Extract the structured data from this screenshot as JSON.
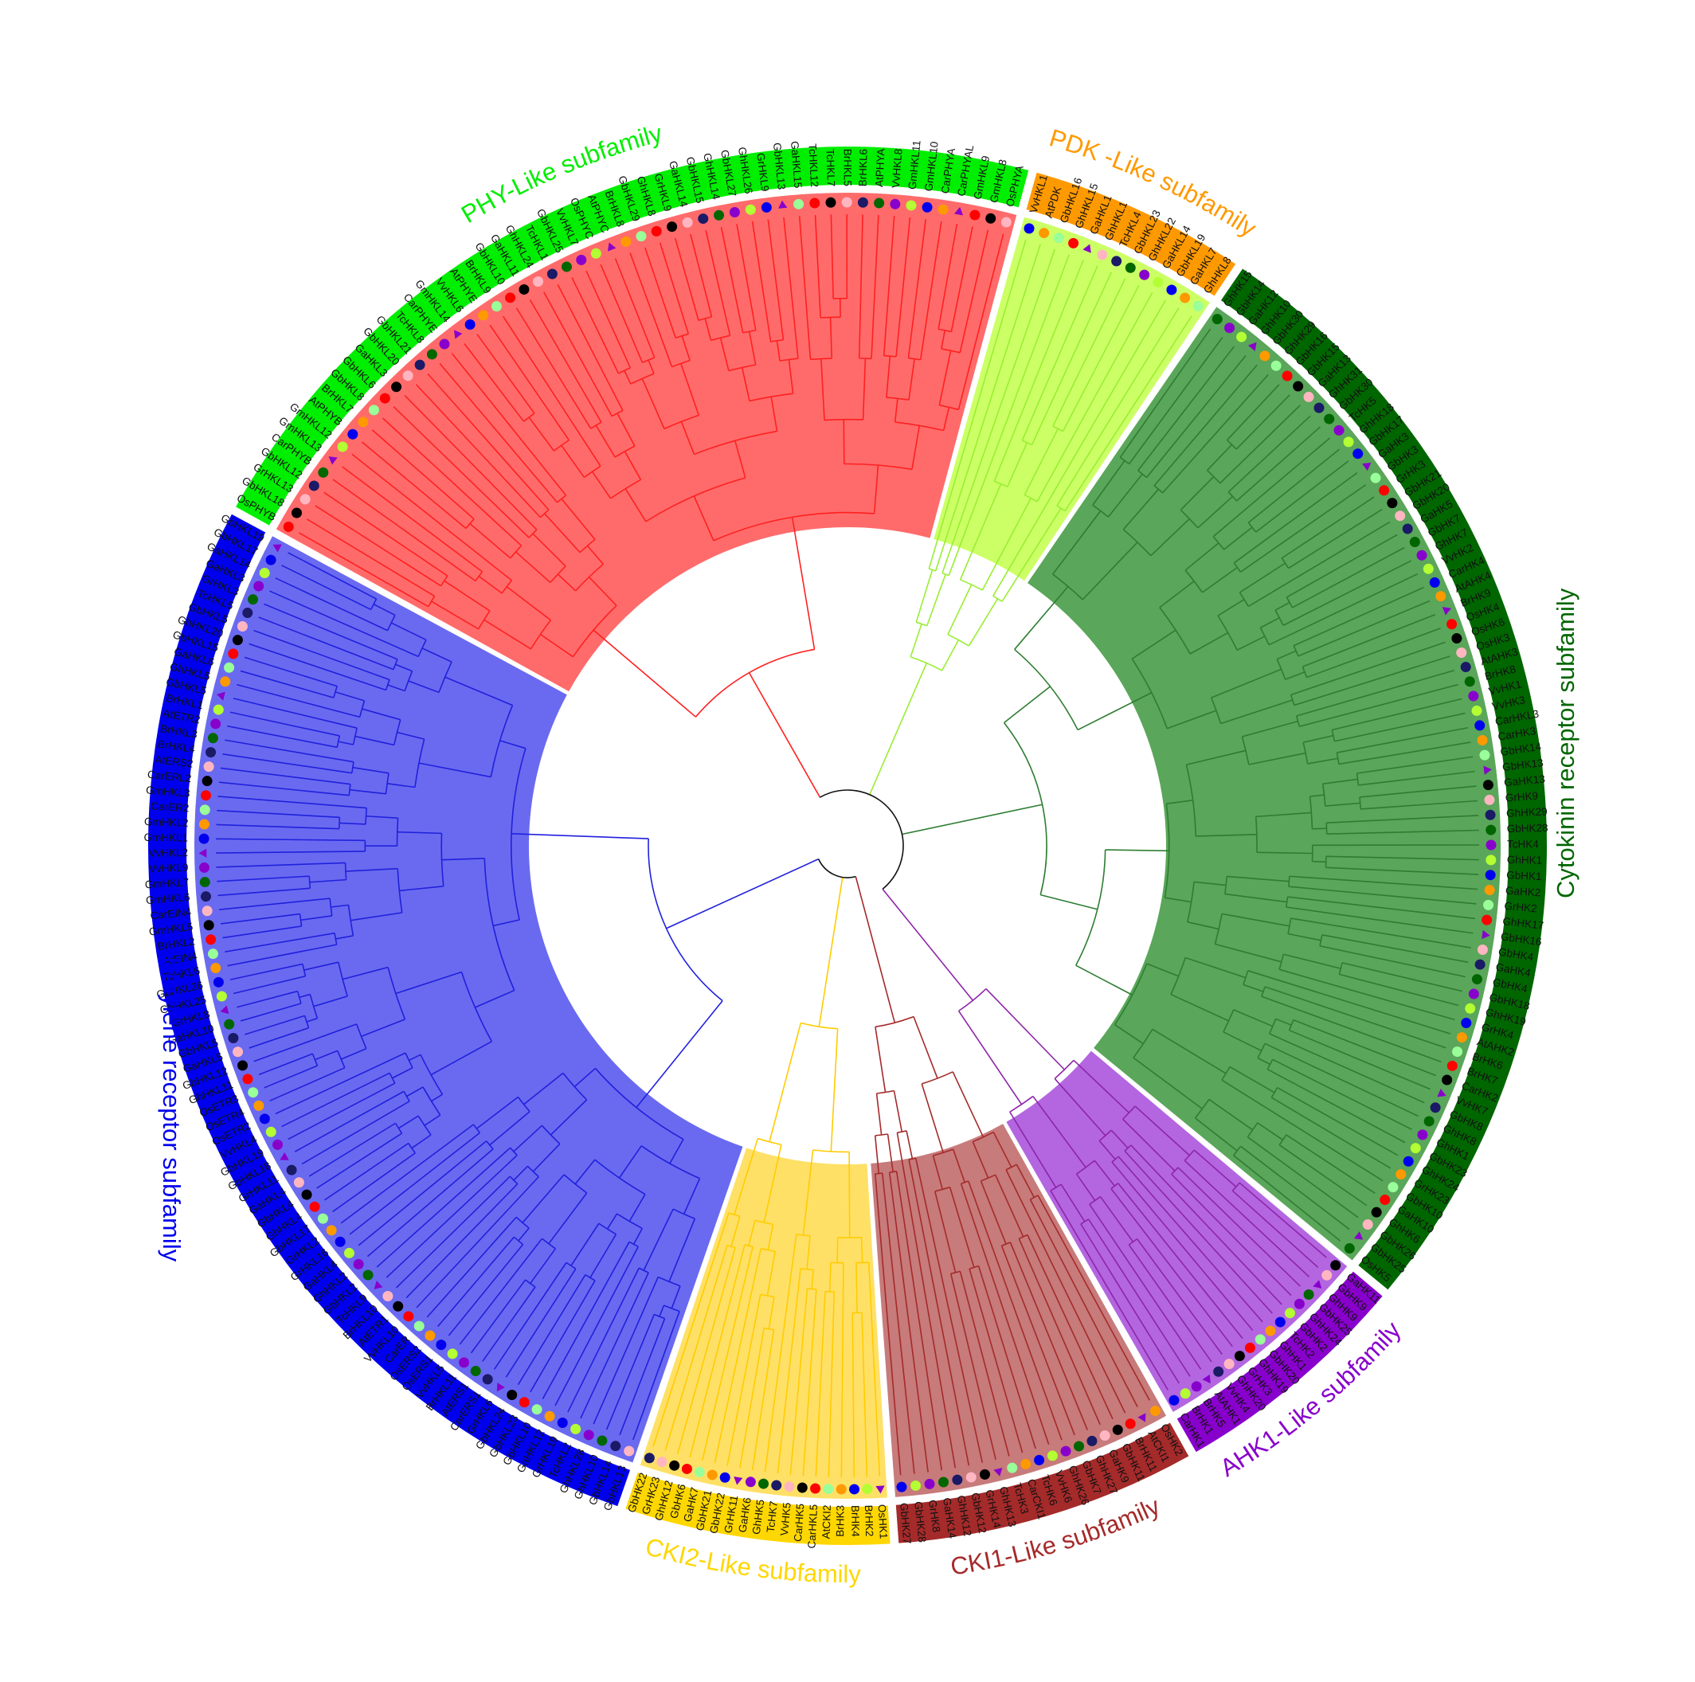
{
  "subfamilies": [
    {
      "id": "phy",
      "name": "PHY-Like subfamily",
      "band_color": "#00ee00",
      "label_color": "#00ee00",
      "sector_color": "#ff6b6b",
      "branch_color": "#ff2020",
      "leaves": [
        "OsPHYB",
        "GbHKL18",
        "GrHKL13",
        "GbHKL12",
        "CarPHYB",
        "GmHKL13",
        "GmHKL12",
        "AtPHYB",
        "BrHKL7",
        "GbHKL8",
        "GbHKL6",
        "GaHKL3",
        "GbHKL20",
        "GbHKL21",
        "TcHKL8",
        "CarPHYE",
        "GmHKL14",
        "VvHKL6",
        "AtPHYE",
        "BrHKL9",
        "GbHKL10",
        "GaHKL11",
        "GhHKL24",
        "TcHKL1",
        "GbHKL25",
        "VvHKL7",
        "OsPHYC",
        "AtPHYC",
        "BrHKL8",
        "GbHKL29",
        "GhHKL8",
        "GrHKL9",
        "GaHKL14",
        "GbHKL15",
        "GhHKL14",
        "GbHKL27",
        "GhHKL26",
        "GrHKL9",
        "GbHKL13",
        "GaHKL15",
        "TcHKL12",
        "TcHKL7",
        "BrHKL5",
        "BrHKL6",
        "AtPHYA",
        "VvHKL8",
        "GmHKL11",
        "GmHKL10",
        "CarPHYA",
        "CarPHYAL",
        "GmHKL9",
        "GmHKL8",
        "OsPHYA"
      ]
    },
    {
      "id": "pdk",
      "name": "PDK -Like subfamily",
      "band_color": "#ff9900",
      "label_color": "#ff9900",
      "sector_color": "#ccff66",
      "branch_color": "#99ee33",
      "leaves": [
        "VvHKL1",
        "AtPDK",
        "GbHKL16",
        "GhHKL15",
        "GaHKL1",
        "GhHKL1",
        "TcHKL4",
        "GbHKL23",
        "GhHKL22",
        "GaHKL14",
        "GbHKL19",
        "GaHKL7",
        "GhHKL8"
      ]
    },
    {
      "id": "cyto",
      "name": "Cytokinin receptor subfamily",
      "band_color": "#006600",
      "label_color": "#006600",
      "sector_color": "#5aa65a",
      "branch_color": "#2e7d32",
      "leaves": [
        "GhHK15",
        "GbHK14",
        "GaHK12",
        "GhHK10",
        "GbHK30",
        "GhHK29",
        "GbHK16",
        "GbHK15",
        "GaHK13",
        "GhHK31",
        "GbHK30",
        "TcHK5",
        "GhHK18",
        "GbHK17",
        "GaHK3",
        "GbHK3",
        "GrHK3",
        "GbHK21",
        "GbHK20",
        "GaHK5",
        "GbHK7",
        "GhHK7",
        "VvHK2",
        "CarHK4",
        "AtAHK4",
        "BrHK9",
        "OsHK4",
        "OsHK6",
        "OsHK3",
        "AtAHK3",
        "BrHK8",
        "VvHK1",
        "VvHK3",
        "CarHKL3",
        "CarHK3",
        "GbHK14",
        "GbHK13",
        "GaHK13",
        "GrHK9",
        "GhHK29",
        "GbHK28",
        "TcHK4",
        "GhHK1",
        "GbHK1",
        "GaHK2",
        "GrHK2",
        "GhHK17",
        "GbHK16",
        "GbHK4",
        "GaHK4",
        "GbHK4",
        "GbHK18",
        "GhHK19",
        "GrHK4",
        "AtAHK2",
        "BrHK6",
        "BrHK7",
        "CarHK2",
        "VvHK7",
        "GbHK8",
        "GhHK8",
        "GhHK1",
        "GbHK23",
        "GhHK24",
        "GrHK23",
        "GbHK10",
        "GaHK10",
        "GhHK6",
        "GbHK26",
        "GbHK25",
        "OsHK5"
      ]
    },
    {
      "id": "ahk1",
      "name": "AHK1-Like subfamily",
      "band_color": "#8800cc",
      "label_color": "#8800cc",
      "sector_color": "#b366e0",
      "branch_color": "#8e24aa",
      "leaves": [
        "GaHK11",
        "GbHK9",
        "GhHK9",
        "GbHK25",
        "GhHK24",
        "GbHK2",
        "TcHK2",
        "GhHK1",
        "GbHK20",
        "GhHK19",
        "GrHK3",
        "GhHK20",
        "VvHK4",
        "AtAHK1",
        "BrHK5",
        "BrHK1",
        "CarHK1"
      ]
    },
    {
      "id": "cki1",
      "name": "CKI1-Like subfamily",
      "band_color": "#a52a2a",
      "label_color": "#a52a2a",
      "sector_color": "#c77b7b",
      "branch_color": "#a52a2a",
      "leaves": [
        "OsHK2",
        "AtCKI1",
        "BrHK11",
        "GbHK11",
        "GaHK9",
        "GhHK27",
        "GbHK7",
        "GhHK26",
        "VvHK6",
        "TcHK6",
        "CarCKI1",
        "TcHK3",
        "GhHK13",
        "GrHK14",
        "GbHK12",
        "GhHK12",
        "GaHK14",
        "GrHK8",
        "GbHK28",
        "GbHK27"
      ]
    },
    {
      "id": "cki2",
      "name": "CKI2-Like subfamily",
      "band_color": "#ffd700",
      "label_color": "#ffd700",
      "sector_color": "#ffe066",
      "branch_color": "#ffcc00",
      "leaves": [
        "OsHK1",
        "BrHK2",
        "BrHK4",
        "BrHK3",
        "AtCKI2",
        "CarHKL5",
        "CarHK5",
        "VvHK5",
        "TcHK7",
        "GhHK5",
        "GaHK6",
        "GrHK11",
        "GbHK22",
        "GbHK21",
        "GaHK7",
        "GbHK6",
        "GhHK12",
        "GrHK23",
        "GbHK22"
      ]
    },
    {
      "id": "eth",
      "name": "Ethylene receptor subfamily",
      "band_color": "#0000ee",
      "label_color": "#0000ee",
      "sector_color": "#6a6af0",
      "branch_color": "#2020dd",
      "leaves": [
        "GbHKL13",
        "GbHKL14",
        "GhHKL10",
        "GhHKL28",
        "TcHKL2",
        "GrHKL19",
        "GaHKL12",
        "GbHKL10",
        "GbHKL23",
        "GbHKL24",
        "GrHKL6",
        "CarERS1",
        "AtERS1",
        "BrHKL11",
        "VvHKL5",
        "OsERS1",
        "OsERS2",
        "CarER",
        "VvHKL10",
        "AtETR1",
        "BrHKL10",
        "TcHKL9",
        "GbHKL2",
        "GhHKL2",
        "GaHKL4",
        "GrHKL16",
        "GrHKL2",
        "GbHKL17",
        "GhHKL4",
        "GbHKL4",
        "GaHKL4",
        "GrHKL11",
        "GbHKL18",
        "GbHKL19",
        "VvHKL4",
        "OsETR2",
        "OsETR4",
        "OsETR3",
        "GhHKL11",
        "GbHKL12",
        "GaHKL5",
        "GbHKL5",
        "GaHKL10",
        "GrHKL8",
        "GhHKL25",
        "GbHKL26",
        "TcHKL6",
        "AtEIN4",
        "BrHKL2",
        "GmHKL5",
        "CarEIN4",
        "GmHKL6",
        "GmHKL7",
        "VvHKL9",
        "VvHKL2",
        "GmHKL1",
        "GmHKL2",
        "CarER2",
        "GmHKL3",
        "CarERL2",
        "AtERS2",
        "BrHKL4",
        "BrHKL3",
        "AtETR2",
        "BrHKL1",
        "GbHKL5",
        "GhHKL5",
        "GaHKL6",
        "GbHKL15",
        "GhHKL20",
        "GbHKL5",
        "TcHKL5",
        "GrHKL3",
        "GaHKL3",
        "GaHKL14",
        "GbHKL17",
        "GbHKL19"
      ]
    }
  ],
  "marker_palette": [
    "#ff0000",
    "#0000ee",
    "#006600",
    "#000000",
    "#ff9900",
    "#8800cc",
    "#ffb6c1",
    "#99ff99",
    "#b3ff33",
    "#1a1a66"
  ]
}
